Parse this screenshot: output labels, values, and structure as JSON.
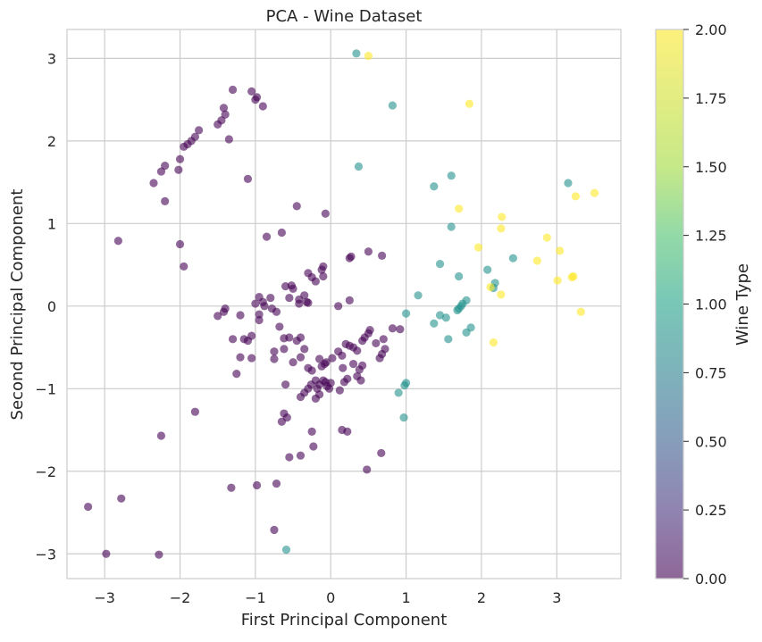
{
  "chart_data": {
    "type": "scatter",
    "title": "PCA - Wine Dataset",
    "xlabel": "First Principal Component",
    "ylabel": "Second Principal Component",
    "xlim": [
      -3.5,
      3.85
    ],
    "ylim": [
      -3.3,
      3.35
    ],
    "xticks": [
      -3,
      -2,
      -1,
      0,
      1,
      2,
      3
    ],
    "yticks": [
      -3,
      -2,
      -1,
      0,
      1,
      2,
      3
    ],
    "xtick_labels": [
      "−3",
      "−2",
      "−1",
      "0",
      "1",
      "2",
      "3"
    ],
    "ytick_labels": [
      "−3",
      "−2",
      "−1",
      "0",
      "1",
      "2",
      "3"
    ],
    "grid": true,
    "colormap": "viridis",
    "marker_alpha": 0.6,
    "colorbar": {
      "label": "Wine Type",
      "range": [
        0,
        2
      ],
      "ticks": [
        0,
        0.25,
        0.5,
        0.75,
        1.0,
        1.25,
        1.5,
        1.75,
        2.0
      ],
      "tick_labels": [
        "0.00",
        "0.25",
        "0.50",
        "0.75",
        "1.00",
        "1.25",
        "1.50",
        "1.75",
        "2.00"
      ]
    },
    "series": [
      {
        "class_value": 0,
        "color": "#440154",
        "points": [
          [
            -1.05,
            2.6
          ],
          [
            -1.0,
            2.5
          ],
          [
            -0.98,
            2.53
          ],
          [
            -1.3,
            2.62
          ],
          [
            -0.9,
            2.42
          ],
          [
            -1.42,
            2.4
          ],
          [
            -1.4,
            2.32
          ],
          [
            -1.45,
            2.25
          ],
          [
            -1.5,
            2.2
          ],
          [
            -1.35,
            2.02
          ],
          [
            -1.75,
            2.13
          ],
          [
            -1.8,
            2.05
          ],
          [
            -1.85,
            2.0
          ],
          [
            -1.9,
            1.96
          ],
          [
            -1.95,
            1.93
          ],
          [
            -2.0,
            1.78
          ],
          [
            -2.02,
            1.65
          ],
          [
            -2.2,
            1.7
          ],
          [
            -2.25,
            1.63
          ],
          [
            -2.35,
            1.49
          ],
          [
            -2.2,
            1.27
          ],
          [
            -1.1,
            1.54
          ],
          [
            -0.45,
            1.21
          ],
          [
            -0.07,
            1.12
          ],
          [
            -2.82,
            0.79
          ],
          [
            -2.0,
            0.75
          ],
          [
            -1.95,
            0.48
          ],
          [
            -0.85,
            0.84
          ],
          [
            -0.65,
            0.89
          ],
          [
            -0.1,
            0.48
          ],
          [
            0.5,
            0.66
          ],
          [
            0.25,
            0.58
          ],
          [
            0.27,
            0.6
          ],
          [
            0.68,
            0.61
          ],
          [
            -0.12,
            0.44
          ],
          [
            -0.25,
            0.35
          ],
          [
            -0.3,
            0.4
          ],
          [
            -0.1,
            0.36
          ],
          [
            -0.55,
            0.1
          ],
          [
            -0.52,
            0.25
          ],
          [
            -0.5,
            0.21
          ],
          [
            -0.6,
            0.24
          ],
          [
            -0.8,
            0.1
          ],
          [
            -0.95,
            0.11
          ],
          [
            -0.9,
            0.05
          ],
          [
            -0.88,
            0.0
          ],
          [
            -1.0,
            0.03
          ],
          [
            -0.95,
            -0.1
          ],
          [
            -0.78,
            -0.03
          ],
          [
            -0.72,
            -0.07
          ],
          [
            -0.3,
            0.04
          ],
          [
            -0.32,
            0.05
          ],
          [
            -0.42,
            0.08
          ],
          [
            -0.35,
            0.13
          ],
          [
            0.25,
            0.07
          ],
          [
            -0.42,
            0.03
          ],
          [
            -0.2,
            0.3
          ],
          [
            0.1,
            0.0
          ],
          [
            -1.4,
            -0.03
          ],
          [
            -1.42,
            -0.07
          ],
          [
            -1.5,
            -0.12
          ],
          [
            -0.95,
            -0.17
          ],
          [
            -1.2,
            -0.11
          ],
          [
            -0.68,
            -0.25
          ],
          [
            -0.55,
            -0.38
          ],
          [
            -0.45,
            -0.42
          ],
          [
            -0.4,
            -0.38
          ],
          [
            -0.62,
            -0.39
          ],
          [
            -0.35,
            -0.52
          ],
          [
            -1.3,
            -0.4
          ],
          [
            -1.15,
            -0.4
          ],
          [
            -1.05,
            -0.36
          ],
          [
            -1.1,
            -0.42
          ],
          [
            -1.2,
            -0.62
          ],
          [
            -1.05,
            -0.63
          ],
          [
            -1.25,
            -0.82
          ],
          [
            -0.75,
            -0.55
          ],
          [
            -0.62,
            -0.52
          ],
          [
            -0.75,
            -0.64
          ],
          [
            -0.5,
            -0.68
          ],
          [
            -0.3,
            -0.75
          ],
          [
            -0.25,
            -0.78
          ],
          [
            -0.08,
            -0.7
          ],
          [
            -0.12,
            -0.73
          ],
          [
            -0.06,
            -0.68
          ],
          [
            -0.15,
            -0.64
          ],
          [
            0.02,
            -0.63
          ],
          [
            -0.2,
            -0.9
          ],
          [
            -0.26,
            -0.95
          ],
          [
            -0.3,
            -1.0
          ],
          [
            -0.35,
            -1.05
          ],
          [
            -0.4,
            -1.1
          ],
          [
            -0.15,
            -0.95
          ],
          [
            -0.1,
            -0.9
          ],
          [
            -0.05,
            -0.97
          ],
          [
            -0.07,
            -0.92
          ],
          [
            0.0,
            -0.93
          ],
          [
            -0.18,
            -1.0
          ],
          [
            -0.15,
            -1.07
          ],
          [
            -0.2,
            -1.12
          ],
          [
            0.2,
            -0.46
          ],
          [
            0.25,
            -0.48
          ],
          [
            0.3,
            -0.5
          ],
          [
            0.35,
            -0.54
          ],
          [
            0.42,
            -0.42
          ],
          [
            0.45,
            -0.38
          ],
          [
            0.5,
            -0.33
          ],
          [
            0.52,
            -0.29
          ],
          [
            0.6,
            -0.45
          ],
          [
            0.68,
            -0.58
          ],
          [
            0.72,
            -0.52
          ],
          [
            0.42,
            -0.72
          ],
          [
            0.38,
            -0.77
          ],
          [
            0.35,
            -0.85
          ],
          [
            0.3,
            -0.7
          ],
          [
            0.4,
            -0.9
          ],
          [
            0.7,
            -0.4
          ],
          [
            0.65,
            -0.63
          ],
          [
            0.92,
            -0.28
          ],
          [
            0.82,
            -0.27
          ],
          [
            -0.6,
            -0.95
          ],
          [
            -0.4,
            -0.62
          ],
          [
            0.1,
            -0.55
          ],
          [
            0.15,
            -0.6
          ],
          [
            0.16,
            -0.75
          ],
          [
            0.22,
            -0.88
          ],
          [
            0.18,
            -0.92
          ],
          [
            0.12,
            -1.02
          ],
          [
            -0.02,
            -1.0
          ],
          [
            -1.8,
            -1.28
          ],
          [
            -0.62,
            -1.3
          ],
          [
            -0.65,
            -1.4
          ],
          [
            -0.58,
            -1.35
          ],
          [
            -0.25,
            -1.52
          ],
          [
            0.15,
            -1.5
          ],
          [
            0.22,
            -1.52
          ],
          [
            -0.55,
            -1.83
          ],
          [
            -0.4,
            -1.81
          ],
          [
            -0.23,
            -1.7
          ],
          [
            0.67,
            -1.78
          ],
          [
            0.48,
            -1.98
          ],
          [
            -2.25,
            -1.57
          ],
          [
            -1.32,
            -2.2
          ],
          [
            -0.98,
            -2.17
          ],
          [
            -0.72,
            -2.15
          ],
          [
            -2.78,
            -2.33
          ],
          [
            -3.22,
            -2.43
          ],
          [
            -0.75,
            -2.71
          ],
          [
            -2.98,
            -3.0
          ],
          [
            -2.28,
            -3.01
          ]
        ]
      },
      {
        "class_value": 1,
        "color": "#21918c",
        "points": [
          [
            0.34,
            3.06
          ],
          [
            0.82,
            2.43
          ],
          [
            0.37,
            1.69
          ],
          [
            1.6,
            1.58
          ],
          [
            1.37,
            1.45
          ],
          [
            3.15,
            1.49
          ],
          [
            1.6,
            0.96
          ],
          [
            1.45,
            0.51
          ],
          [
            1.7,
            0.36
          ],
          [
            2.42,
            0.58
          ],
          [
            2.08,
            0.44
          ],
          [
            2.18,
            0.28
          ],
          [
            2.16,
            0.22
          ],
          [
            1.16,
            0.13
          ],
          [
            1.8,
            0.07
          ],
          [
            1.75,
            0.03
          ],
          [
            1.73,
            0.0
          ],
          [
            1.7,
            -0.03
          ],
          [
            1.68,
            -0.05
          ],
          [
            1.0,
            -0.09
          ],
          [
            1.45,
            -0.11
          ],
          [
            1.53,
            -0.14
          ],
          [
            1.37,
            -0.21
          ],
          [
            1.86,
            -0.26
          ],
          [
            1.8,
            -0.32
          ],
          [
            1.56,
            -0.4
          ],
          [
            1.0,
            -0.93
          ],
          [
            0.98,
            -0.96
          ],
          [
            0.9,
            -1.05
          ],
          [
            0.97,
            -1.35
          ],
          [
            -0.59,
            -2.95
          ]
        ]
      },
      {
        "class_value": 2,
        "color": "#fde725",
        "points": [
          [
            0.5,
            3.03
          ],
          [
            1.84,
            2.45
          ],
          [
            1.7,
            1.18
          ],
          [
            2.27,
            1.08
          ],
          [
            2.26,
            0.94
          ],
          [
            3.25,
            1.33
          ],
          [
            3.5,
            1.37
          ],
          [
            1.96,
            0.71
          ],
          [
            2.87,
            0.83
          ],
          [
            3.04,
            0.67
          ],
          [
            2.74,
            0.55
          ],
          [
            3.22,
            0.36
          ],
          [
            3.2,
            0.35
          ],
          [
            3.01,
            0.31
          ],
          [
            2.12,
            0.23
          ],
          [
            2.26,
            0.14
          ],
          [
            3.32,
            -0.07
          ],
          [
            2.16,
            -0.44
          ]
        ]
      }
    ]
  }
}
